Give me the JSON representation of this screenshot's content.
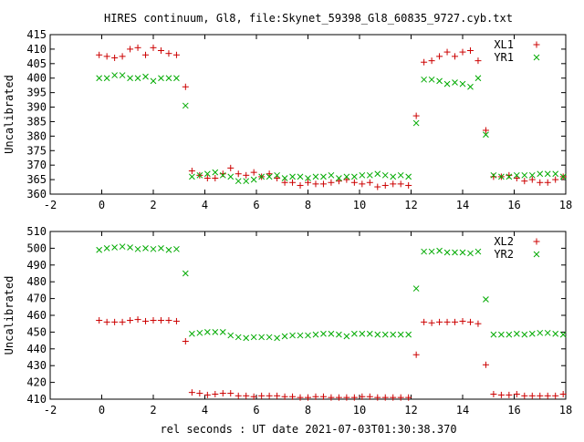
{
  "title": "HIRES continuum, Gl8, file:Skynet_59398_Gl8_60835_9727.cyb.txt",
  "xlabel": "rel seconds : UT date 2021-07-03T01:30:38.370",
  "colors": {
    "plus": "#cc0000",
    "cross": "#00aa00",
    "axis": "#000000",
    "background": "#ffffff"
  },
  "chart_data": [
    {
      "type": "scatter",
      "ylabel": "Uncalibrated",
      "xlim": [
        -2,
        18
      ],
      "ylim": [
        360,
        415
      ],
      "xticks": [
        -2,
        0,
        2,
        4,
        6,
        8,
        10,
        12,
        14,
        16,
        18
      ],
      "yticks": [
        360,
        365,
        370,
        375,
        380,
        385,
        390,
        395,
        400,
        405,
        410,
        415
      ],
      "grid": false,
      "legend_position": "top-right",
      "series": [
        {
          "name": "XL1",
          "marker": "plus",
          "x": [
            -0.1,
            0.2,
            0.5,
            0.8,
            1.1,
            1.4,
            1.7,
            2.0,
            2.3,
            2.6,
            2.9,
            3.25,
            3.5,
            3.8,
            4.1,
            4.4,
            4.7,
            5.0,
            5.3,
            5.6,
            5.9,
            6.2,
            6.5,
            6.8,
            7.1,
            7.4,
            7.7,
            8.0,
            8.3,
            8.6,
            8.9,
            9.2,
            9.5,
            9.8,
            10.1,
            10.4,
            10.7,
            11.0,
            11.3,
            11.6,
            11.9,
            12.2,
            12.5,
            12.8,
            13.1,
            13.4,
            13.7,
            14.0,
            14.3,
            14.6,
            14.9,
            15.2,
            15.5,
            15.8,
            16.1,
            16.4,
            16.7,
            17.0,
            17.3,
            17.6,
            17.9
          ],
          "y": [
            408,
            407.5,
            407,
            407.5,
            410,
            410.5,
            408,
            410.5,
            409.5,
            408.5,
            408,
            397,
            368,
            366.5,
            365.5,
            365.5,
            367,
            369,
            367,
            366.5,
            367.5,
            366,
            367,
            365.5,
            364,
            364,
            363,
            364,
            363.5,
            363.5,
            364,
            364.5,
            365,
            364,
            363.5,
            364,
            362.5,
            363,
            363.5,
            363.5,
            363,
            387,
            405.5,
            406,
            407.5,
            409,
            407.5,
            409,
            409.5,
            406,
            382,
            366,
            366,
            366.5,
            365.5,
            364.5,
            365,
            364,
            364,
            365,
            366
          ]
        },
        {
          "name": "YR1",
          "marker": "cross",
          "x": [
            -0.1,
            0.2,
            0.5,
            0.8,
            1.1,
            1.4,
            1.7,
            2.0,
            2.3,
            2.6,
            2.9,
            3.25,
            3.5,
            3.8,
            4.1,
            4.4,
            4.7,
            5.0,
            5.3,
            5.6,
            5.9,
            6.2,
            6.5,
            6.8,
            7.1,
            7.4,
            7.7,
            8.0,
            8.3,
            8.6,
            8.9,
            9.2,
            9.5,
            9.8,
            10.1,
            10.4,
            10.7,
            11.0,
            11.3,
            11.6,
            11.9,
            12.2,
            12.5,
            12.8,
            13.1,
            13.4,
            13.7,
            14.0,
            14.3,
            14.6,
            14.9,
            15.2,
            15.5,
            15.8,
            16.1,
            16.4,
            16.7,
            17.0,
            17.3,
            17.6,
            17.9
          ],
          "y": [
            400,
            400,
            401,
            401,
            400,
            400,
            400.5,
            399,
            400,
            400,
            400,
            390.5,
            366,
            366.5,
            367,
            367.5,
            366.5,
            366,
            364.5,
            364.5,
            365,
            366,
            366,
            366.5,
            365.5,
            366,
            366,
            365.5,
            366,
            366,
            366.5,
            365.5,
            366,
            366,
            366.5,
            366.5,
            367,
            366.5,
            366,
            366.5,
            366,
            384.5,
            399.5,
            399.5,
            399,
            398,
            398.5,
            398,
            397,
            400,
            380.5,
            366.5,
            366,
            366,
            366.5,
            366.5,
            366.5,
            367,
            367,
            367,
            366
          ]
        }
      ]
    },
    {
      "type": "scatter",
      "ylabel": "Uncalibrated",
      "xlim": [
        -2,
        18
      ],
      "ylim": [
        410,
        510
      ],
      "xticks": [
        -2,
        0,
        2,
        4,
        6,
        8,
        10,
        12,
        14,
        16,
        18
      ],
      "yticks": [
        410,
        420,
        430,
        440,
        450,
        460,
        470,
        480,
        490,
        500,
        510
      ],
      "grid": false,
      "legend_position": "top-right",
      "series": [
        {
          "name": "XL2",
          "marker": "plus",
          "x": [
            -0.1,
            0.2,
            0.5,
            0.8,
            1.1,
            1.4,
            1.7,
            2.0,
            2.3,
            2.6,
            2.9,
            3.25,
            3.5,
            3.8,
            4.1,
            4.4,
            4.7,
            5.0,
            5.3,
            5.6,
            5.9,
            6.2,
            6.5,
            6.8,
            7.1,
            7.4,
            7.7,
            8.0,
            8.3,
            8.6,
            8.9,
            9.2,
            9.5,
            9.8,
            10.1,
            10.4,
            10.7,
            11.0,
            11.3,
            11.6,
            11.9,
            12.2,
            12.5,
            12.8,
            13.1,
            13.4,
            13.7,
            14.0,
            14.3,
            14.6,
            14.9,
            15.2,
            15.5,
            15.8,
            16.1,
            16.4,
            16.7,
            17.0,
            17.3,
            17.6,
            17.9
          ],
          "y": [
            457,
            456,
            456,
            456,
            457,
            457.5,
            456.5,
            457,
            457,
            457,
            456.5,
            444.5,
            414,
            413.5,
            412.5,
            413,
            413.5,
            413.5,
            412,
            412,
            411.5,
            412,
            412,
            412,
            411.5,
            411.5,
            411,
            411,
            411.5,
            411.5,
            411,
            411,
            411,
            411,
            411.5,
            411.5,
            411,
            411,
            411,
            411,
            411,
            436.5,
            456,
            455.5,
            456,
            456,
            456,
            456.5,
            456,
            455,
            430.5,
            413,
            412.5,
            412.5,
            413,
            412,
            412,
            412,
            412,
            412,
            413
          ]
        },
        {
          "name": "YR2",
          "marker": "cross",
          "x": [
            -0.1,
            0.2,
            0.5,
            0.8,
            1.1,
            1.4,
            1.7,
            2.0,
            2.3,
            2.6,
            2.9,
            3.25,
            3.5,
            3.8,
            4.1,
            4.4,
            4.7,
            5.0,
            5.3,
            5.6,
            5.9,
            6.2,
            6.5,
            6.8,
            7.1,
            7.4,
            7.7,
            8.0,
            8.3,
            8.6,
            8.9,
            9.2,
            9.5,
            9.8,
            10.1,
            10.4,
            10.7,
            11.0,
            11.3,
            11.6,
            11.9,
            12.2,
            12.5,
            12.8,
            13.1,
            13.4,
            13.7,
            14.0,
            14.3,
            14.6,
            14.9,
            15.2,
            15.5,
            15.8,
            16.1,
            16.4,
            16.7,
            17.0,
            17.3,
            17.6,
            17.9
          ],
          "y": [
            499,
            500,
            500.5,
            501,
            500.5,
            499.5,
            500,
            499.5,
            500,
            499,
            499.5,
            485,
            449,
            449.5,
            450,
            450,
            450,
            448,
            447,
            446.5,
            447,
            447,
            447,
            446.5,
            447.5,
            448,
            448,
            448,
            448.5,
            449,
            449,
            448.5,
            447.5,
            449,
            449,
            449,
            448.5,
            448.5,
            448.5,
            448.5,
            448.5,
            476,
            498,
            498,
            498.5,
            497.5,
            497.5,
            497.5,
            497,
            498,
            469.5,
            448.5,
            448.5,
            448.5,
            449,
            448.5,
            449,
            449.5,
            449.5,
            449,
            448.5
          ]
        }
      ]
    }
  ]
}
